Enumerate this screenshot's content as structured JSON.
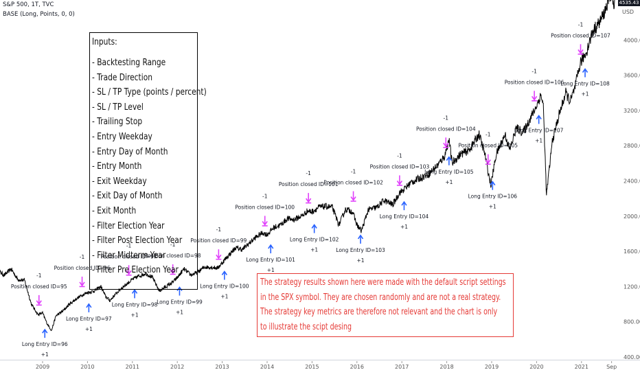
{
  "header": {
    "symbol_line": "S&P 500, 1T, TVC",
    "indicator_line": "BASE (Long, Points, 0, 0)",
    "last_price": "4535.43",
    "currency": "USD"
  },
  "inputs_box": {
    "title": "Inputs:",
    "items": [
      "- Backtesting Range",
      "- Trade Direction",
      "- SL / TP Type (points / percent)",
      "- SL / TP Level",
      "- Trailing Stop",
      "- Entry Weekday",
      "- Entry Day of Month",
      "- Entry Month",
      "- Exit Weekday",
      "- Exit Day of Month",
      "- Exit Month",
      "- Filter Election Year",
      "- Filter Post Election Year",
      "- Filter Midterm Year",
      "- Filter Pre Election Year"
    ]
  },
  "disclaimer": {
    "lines": [
      "The strategy results shown here were made with the default script settings",
      "in the SPX symbol. They are chosen randomly and are not a real strategy.",
      "The strategy key metrics are therefore not relevant and the chart is only",
      "to illustrate the scipt desing"
    ]
  },
  "colors": {
    "price_line": "#000000",
    "entry_arrow": "#2962ff",
    "exit_arrow": "#e040fb",
    "disclaimer": "#e53935",
    "label_text": "#131722",
    "axis_text": "#555555"
  },
  "chart_data": {
    "type": "line",
    "title": "S&P 500, 1T, TVC",
    "ylabel": "USD",
    "ylim": [
      400,
      4700
    ],
    "xlim": [
      2008.0,
      2021.75
    ],
    "y_ticks": [
      "400.00",
      "800.00",
      "1200.00",
      "1600.00",
      "2000.00",
      "2400.00",
      "2800.00",
      "3200.00",
      "3600.00",
      "4000.00",
      "4400.00"
    ],
    "x_ticks": [
      {
        "label": "2009",
        "t": 2009.0
      },
      {
        "label": "2010",
        "t": 2010.0
      },
      {
        "label": "2011",
        "t": 2011.0
      },
      {
        "label": "2012",
        "t": 2012.0
      },
      {
        "label": "2013",
        "t": 2013.0
      },
      {
        "label": "2014",
        "t": 2014.0
      },
      {
        "label": "2015",
        "t": 2015.0
      },
      {
        "label": "2016",
        "t": 2016.0
      },
      {
        "label": "2017",
        "t": 2017.0
      },
      {
        "label": "2018",
        "t": 2018.0
      },
      {
        "label": "2019",
        "t": 2019.0
      },
      {
        "label": "2020",
        "t": 2020.0
      },
      {
        "label": "2021",
        "t": 2021.0
      },
      {
        "label": "Sep",
        "t": 2021.67
      }
    ],
    "series": [
      {
        "name": "S&P 500",
        "points": [
          [
            2008.0,
            1380
          ],
          [
            2008.15,
            1330
          ],
          [
            2008.3,
            1400
          ],
          [
            2008.45,
            1280
          ],
          [
            2008.6,
            1270
          ],
          [
            2008.75,
            1000
          ],
          [
            2008.9,
            880
          ],
          [
            2009.0,
            900
          ],
          [
            2009.1,
            780
          ],
          [
            2009.2,
            700
          ],
          [
            2009.3,
            870
          ],
          [
            2009.45,
            920
          ],
          [
            2009.6,
            1000
          ],
          [
            2009.75,
            1060
          ],
          [
            2009.9,
            1110
          ],
          [
            2010.0,
            1130
          ],
          [
            2010.15,
            1150
          ],
          [
            2010.3,
            1200
          ],
          [
            2010.4,
            1090
          ],
          [
            2010.5,
            1040
          ],
          [
            2010.6,
            1100
          ],
          [
            2010.75,
            1180
          ],
          [
            2010.9,
            1240
          ],
          [
            2011.0,
            1280
          ],
          [
            2011.15,
            1320
          ],
          [
            2011.3,
            1350
          ],
          [
            2011.45,
            1300
          ],
          [
            2011.6,
            1150
          ],
          [
            2011.75,
            1200
          ],
          [
            2011.9,
            1250
          ],
          [
            2012.0,
            1300
          ],
          [
            2012.15,
            1400
          ],
          [
            2012.3,
            1330
          ],
          [
            2012.45,
            1360
          ],
          [
            2012.6,
            1420
          ],
          [
            2012.75,
            1420
          ],
          [
            2012.9,
            1410
          ],
          [
            2013.0,
            1470
          ],
          [
            2013.15,
            1560
          ],
          [
            2013.3,
            1640
          ],
          [
            2013.45,
            1620
          ],
          [
            2013.6,
            1690
          ],
          [
            2013.75,
            1760
          ],
          [
            2013.9,
            1810
          ],
          [
            2014.0,
            1790
          ],
          [
            2014.15,
            1870
          ],
          [
            2014.3,
            1900
          ],
          [
            2014.45,
            1970
          ],
          [
            2014.6,
            1960
          ],
          [
            2014.8,
            2010
          ],
          [
            2014.9,
            2060
          ],
          [
            2015.0,
            2050
          ],
          [
            2015.15,
            2100
          ],
          [
            2015.3,
            2110
          ],
          [
            2015.45,
            2100
          ],
          [
            2015.6,
            1900
          ],
          [
            2015.75,
            2080
          ],
          [
            2015.9,
            2050
          ],
          [
            2016.0,
            1900
          ],
          [
            2016.1,
            1830
          ],
          [
            2016.25,
            2070
          ],
          [
            2016.45,
            2100
          ],
          [
            2016.6,
            2180
          ],
          [
            2016.8,
            2130
          ],
          [
            2016.95,
            2270
          ],
          [
            2017.0,
            2280
          ],
          [
            2017.2,
            2380
          ],
          [
            2017.4,
            2430
          ],
          [
            2017.6,
            2480
          ],
          [
            2017.8,
            2580
          ],
          [
            2017.95,
            2680
          ],
          [
            2018.05,
            2870
          ],
          [
            2018.12,
            2600
          ],
          [
            2018.3,
            2700
          ],
          [
            2018.5,
            2750
          ],
          [
            2018.72,
            2930
          ],
          [
            2018.85,
            2700
          ],
          [
            2018.98,
            2350
          ],
          [
            2019.1,
            2700
          ],
          [
            2019.3,
            2930
          ],
          [
            2019.4,
            2750
          ],
          [
            2019.55,
            3000
          ],
          [
            2019.7,
            2950
          ],
          [
            2019.85,
            3100
          ],
          [
            2019.98,
            3230
          ],
          [
            2020.1,
            3380
          ],
          [
            2020.15,
            3250
          ],
          [
            2020.22,
            2240
          ],
          [
            2020.35,
            2850
          ],
          [
            2020.5,
            3150
          ],
          [
            2020.65,
            3400
          ],
          [
            2020.75,
            3300
          ],
          [
            2020.85,
            3450
          ],
          [
            2020.98,
            3750
          ],
          [
            2021.1,
            3850
          ],
          [
            2021.25,
            4100
          ],
          [
            2021.4,
            4200
          ],
          [
            2021.5,
            4300
          ],
          [
            2021.6,
            4450
          ],
          [
            2021.67,
            4530
          ],
          [
            2021.72,
            4350
          ],
          [
            2021.75,
            4500
          ]
        ]
      }
    ],
    "trades": [
      {
        "id": "95",
        "exit_label": "Position closed ID=95",
        "exit_qty": "-1",
        "exit_t": 2008.92,
        "exit_v": 900,
        "exit_arrow": "down"
      },
      {
        "id": "96",
        "entry_label": "Long Entry ID=96",
        "entry_qty": "+1",
        "entry_t": 2009.05,
        "entry_v": 820,
        "exit_label": "Position closed ID=96",
        "exit_qty": "-1",
        "exit_t": 2009.88,
        "exit_v": 1110
      },
      {
        "id": "97",
        "entry_label": "Long Entry ID=97",
        "entry_qty": "+1",
        "entry_t": 2010.03,
        "entry_v": 1110,
        "exit_label": "Position closed ID=97",
        "exit_qty": "-1",
        "exit_t": 2010.92,
        "exit_v": 1240
      },
      {
        "id": "98",
        "entry_label": "Long Entry ID=98",
        "entry_qty": "+1",
        "entry_t": 2011.05,
        "entry_v": 1270,
        "exit_label": "Position closed ID=98",
        "exit_qty": "-1",
        "exit_t": 2011.9,
        "exit_v": 1250
      },
      {
        "id": "99",
        "entry_label": "Long Entry ID=99",
        "entry_qty": "+1",
        "entry_t": 2012.05,
        "entry_v": 1300,
        "exit_label": "Position closed ID=99",
        "exit_qty": "-1",
        "exit_t": 2012.92,
        "exit_v": 1420
      },
      {
        "id": "100",
        "entry_label": "Long Entry ID=100",
        "entry_qty": "+1",
        "entry_t": 2013.05,
        "entry_v": 1480,
        "exit_label": "Position closed ID=100",
        "exit_qty": "-1",
        "exit_t": 2013.95,
        "exit_v": 1800
      },
      {
        "id": "101",
        "entry_label": "Long Entry ID=101",
        "entry_qty": "+1",
        "entry_t": 2014.08,
        "entry_v": 1780,
        "exit_label": "Position closed ID=101",
        "exit_qty": "-1",
        "exit_t": 2014.92,
        "exit_v": 2060
      },
      {
        "id": "102",
        "entry_label": "Long Entry ID=102",
        "entry_qty": "+1",
        "entry_t": 2015.05,
        "entry_v": 2010,
        "exit_label": "Position closed ID=102",
        "exit_qty": "-1",
        "exit_t": 2015.92,
        "exit_v": 2080
      },
      {
        "id": "103",
        "entry_label": "Long Entry ID=103",
        "entry_qty": "+1",
        "entry_t": 2016.08,
        "entry_v": 1890,
        "exit_label": "Position closed ID=103",
        "exit_qty": "-1",
        "exit_t": 2016.95,
        "exit_v": 2260
      },
      {
        "id": "104",
        "entry_label": "Long Entry ID=104",
        "entry_qty": "+1",
        "entry_t": 2017.05,
        "entry_v": 2270,
        "exit_label": "Position closed ID=104",
        "exit_qty": "-1",
        "exit_t": 2017.98,
        "exit_v": 2690
      },
      {
        "id": "105",
        "entry_label": "Long Entry ID=105",
        "entry_qty": "+1",
        "entry_t": 2018.05,
        "entry_v": 2780,
        "exit_label": "Position closed ID=105",
        "exit_qty": "-1",
        "exit_t": 2018.92,
        "exit_v": 2500
      },
      {
        "id": "106",
        "entry_label": "Long Entry ID=106",
        "entry_qty": "+1",
        "entry_t": 2019.02,
        "entry_v": 2500,
        "exit_label": "Position closed ID=106",
        "exit_qty": "-1",
        "exit_t": 2019.95,
        "exit_v": 3220
      },
      {
        "id": "107",
        "entry_label": "Long Entry ID=107",
        "entry_qty": "+1",
        "entry_t": 2020.05,
        "entry_v": 3250,
        "exit_label": "Position closed ID=107",
        "exit_qty": "-1",
        "exit_t": 2020.98,
        "exit_v": 3750
      },
      {
        "id": "108",
        "entry_label": "Long Entry ID=108",
        "entry_qty": "+1",
        "entry_t": 2021.08,
        "entry_v": 3780
      }
    ]
  }
}
